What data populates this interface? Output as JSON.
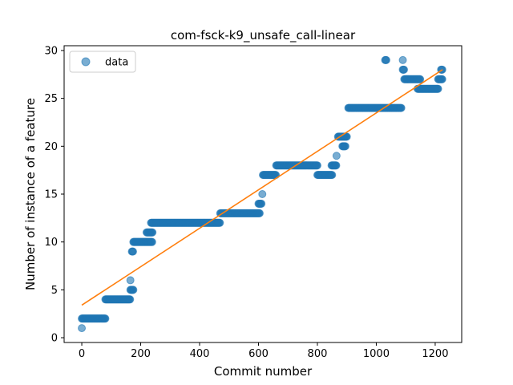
{
  "chart_data": {
    "type": "scatter",
    "title": "com-fsck-k9_unsafe_call-linear",
    "xlabel": "Commit number",
    "ylabel": "Number of instance of a feature",
    "xlim": [
      -60,
      1290
    ],
    "ylim": [
      -0.5,
      30.5
    ],
    "xticks": [
      0,
      200,
      400,
      600,
      800,
      1000,
      1200
    ],
    "yticks": [
      0,
      5,
      10,
      15,
      20,
      25,
      30
    ],
    "grid": false,
    "legend_position": "top-left",
    "legend": [
      "data"
    ],
    "colors": {
      "data": "#1f77b4",
      "fit": "#ff7f0e"
    },
    "series": [
      {
        "name": "data",
        "kind": "scatter",
        "runs": [
          [
            0,
            0,
            1
          ],
          [
            0,
            80,
            2
          ],
          [
            80,
            165,
            4
          ],
          [
            165,
            165,
            6
          ],
          [
            165,
            175,
            5
          ],
          [
            170,
            175,
            9
          ],
          [
            175,
            240,
            10
          ],
          [
            220,
            240,
            11
          ],
          [
            235,
            470,
            12
          ],
          [
            470,
            605,
            13
          ],
          [
            600,
            610,
            14
          ],
          [
            613,
            613,
            15
          ],
          [
            615,
            660,
            17
          ],
          [
            660,
            800,
            18
          ],
          [
            800,
            850,
            17
          ],
          [
            848,
            865,
            18
          ],
          [
            865,
            865,
            19
          ],
          [
            870,
            900,
            21
          ],
          [
            885,
            895,
            20
          ],
          [
            905,
            1085,
            24
          ],
          [
            1030,
            1035,
            29
          ],
          [
            1090,
            1095,
            28
          ],
          [
            1090,
            1090,
            29
          ],
          [
            1095,
            1150,
            27
          ],
          [
            1140,
            1210,
            26
          ],
          [
            1210,
            1225,
            27
          ],
          [
            1220,
            1225,
            28
          ]
        ]
      },
      {
        "kind": "line",
        "points": [
          [
            0,
            3.4
          ],
          [
            1225,
            28.0
          ]
        ]
      }
    ]
  }
}
